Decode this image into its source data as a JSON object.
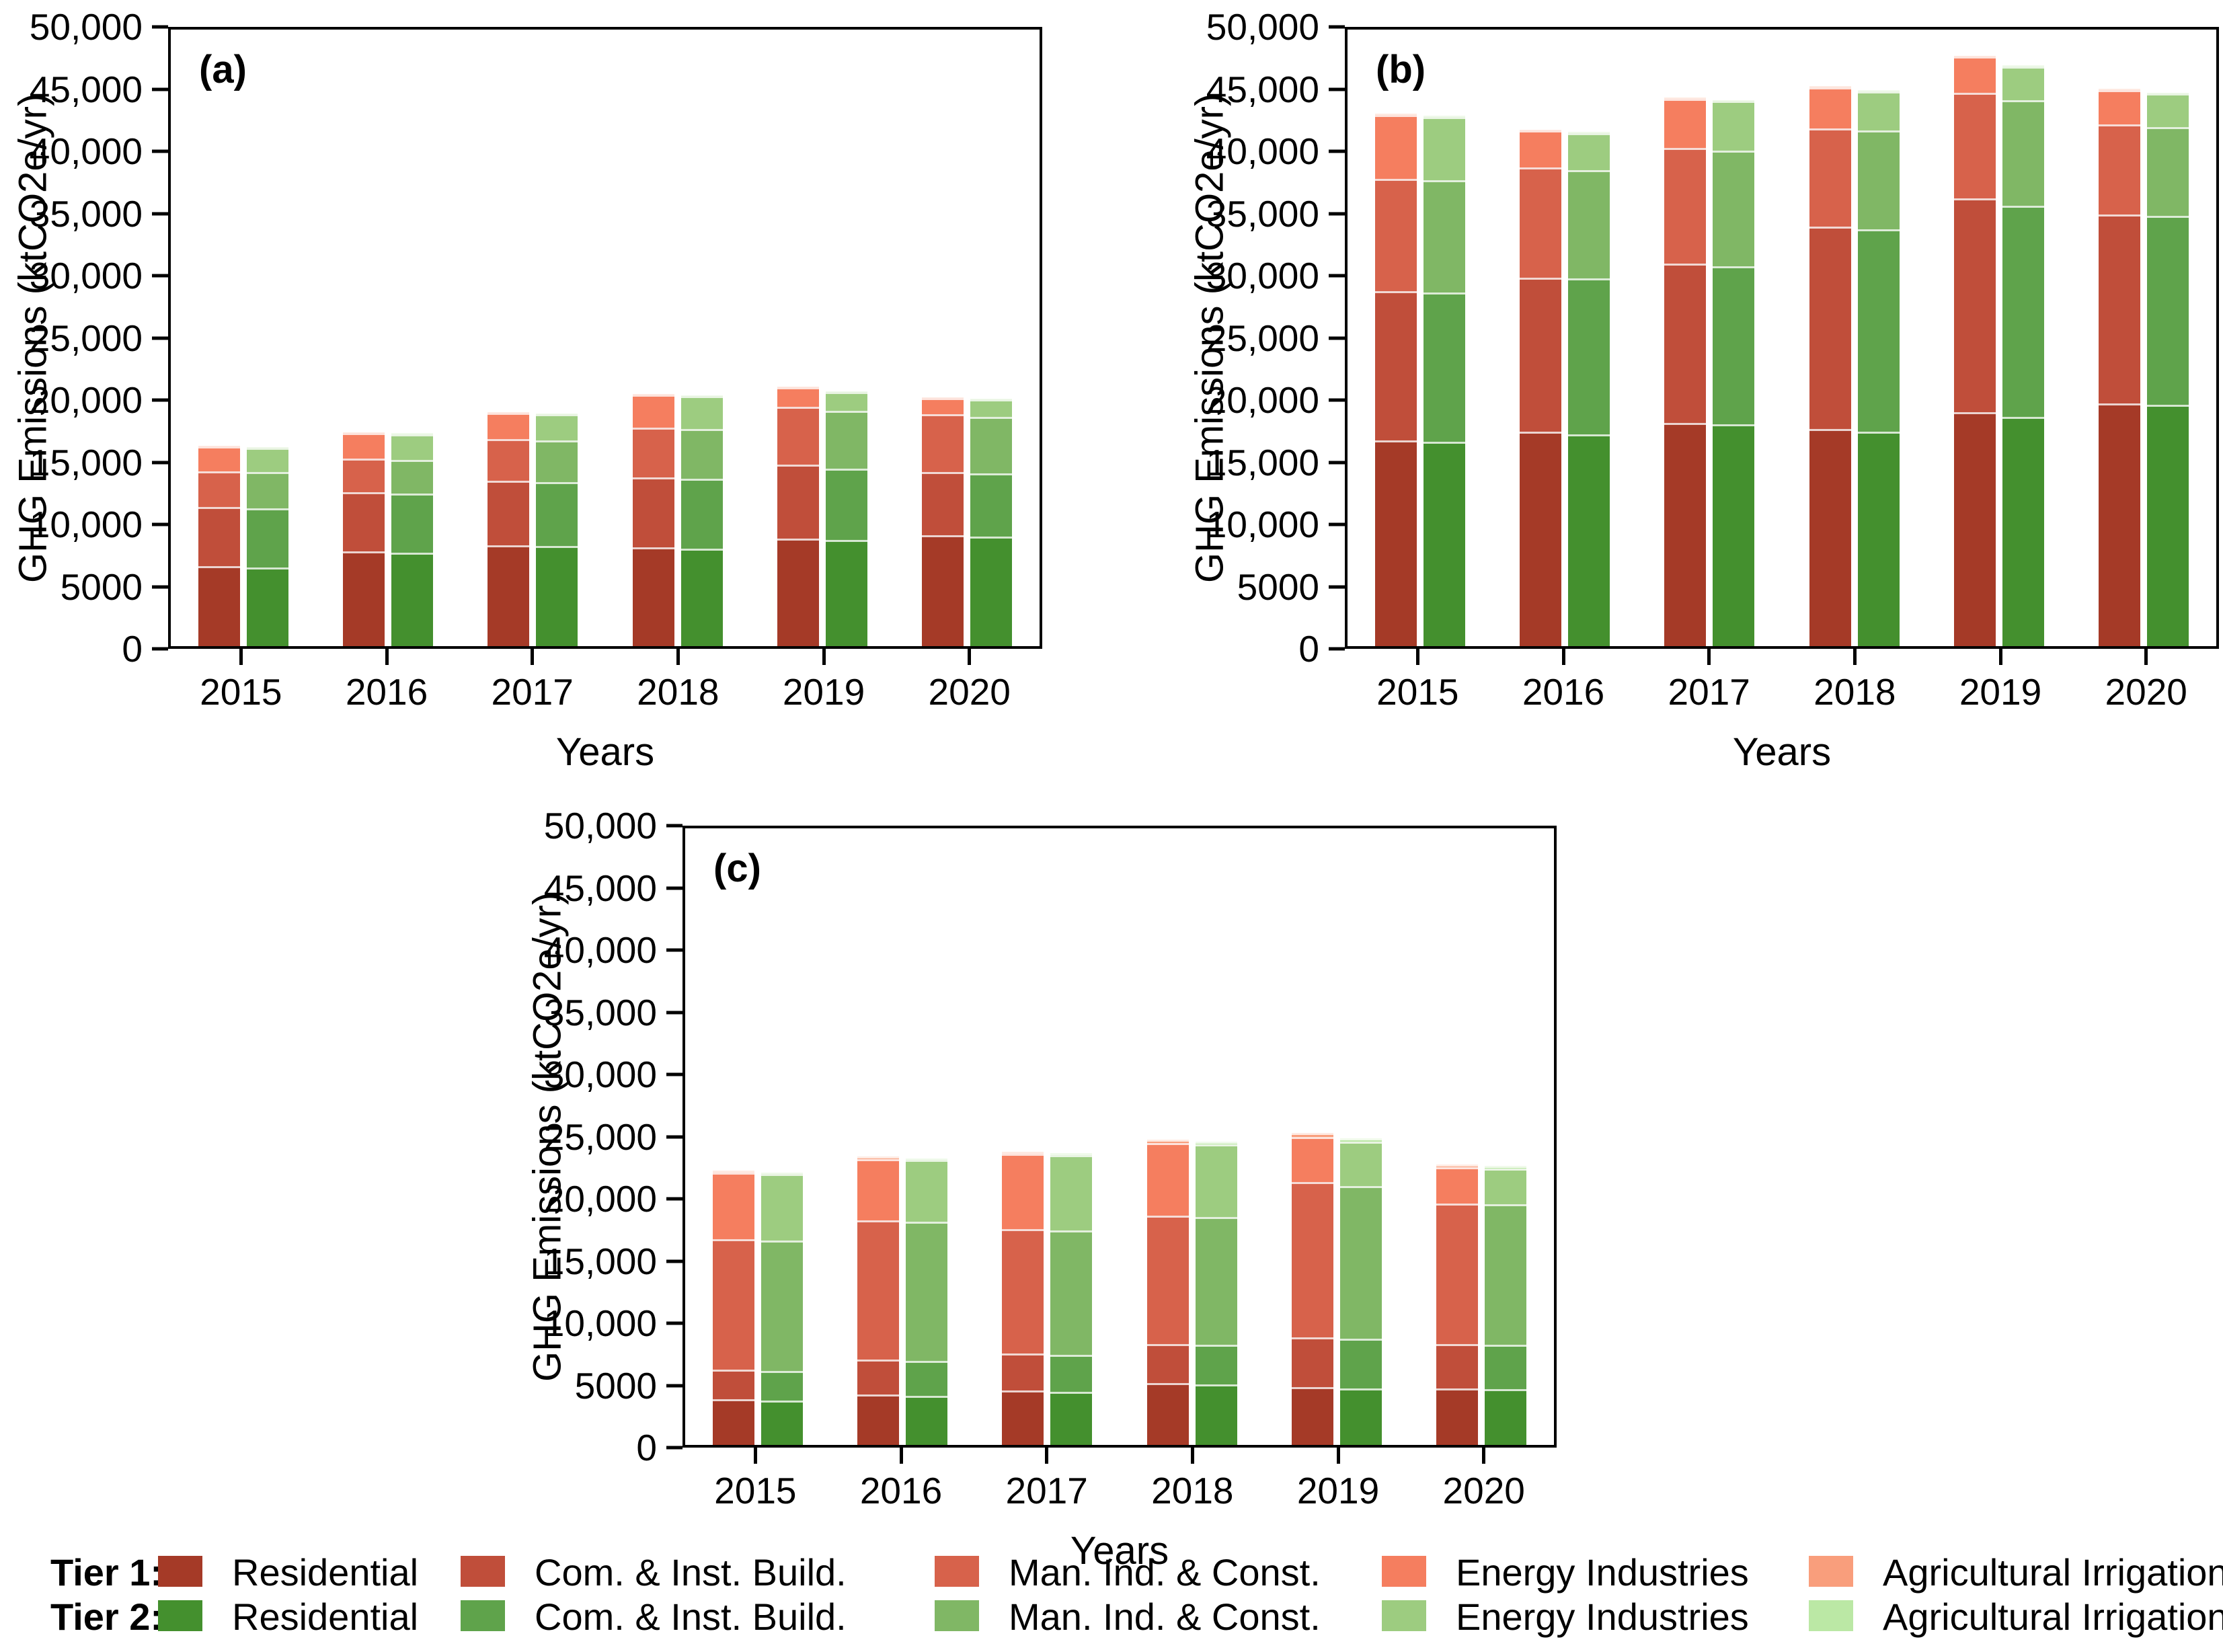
{
  "figure_title": "",
  "axes": {
    "ymax": 50000,
    "ytick_step": 5000,
    "ytick_labels": [
      "0",
      "5000",
      "10,000",
      "15,000",
      "20,000",
      "25,000",
      "30,000",
      "35,000",
      "40,000",
      "45,000",
      "50,000"
    ]
  },
  "colors": {
    "tier1": [
      "#A53A27",
      "#C04E3A",
      "#D7624B",
      "#F57E5F",
      "#F99E7C"
    ],
    "tier2": [
      "#44902E",
      "#5FA34B",
      "#80B765",
      "#9DCC80",
      "#BBE8A5"
    ]
  },
  "stack_order": [
    "Residential",
    "Com. & Inst. Build.",
    "Man. Ind. & Const.",
    "Energy Industries",
    "Agricultural Irrigation"
  ],
  "chart_data": [
    {
      "type": "bar-stacked-paired",
      "label": "(a)",
      "xlabel": "Years",
      "ylabel": "GHG Emissions (ktCO2e/yr)",
      "ylim": [
        0,
        50000
      ],
      "categories": [
        "2015",
        "2016",
        "2017",
        "2018",
        "2019",
        "2020"
      ],
      "series": [
        {
          "name": "Tier 1",
          "stack_labels": [
            "Residential",
            "Com. & Inst. Build.",
            "Man. Ind. & Const.",
            "Energy Industries",
            "Agricultural Irrigation"
          ],
          "values": [
            [
              6500,
              4800,
              2900,
              2000,
              60
            ],
            [
              7700,
              4800,
              2700,
              2100,
              60
            ],
            [
              8200,
              5200,
              3400,
              2100,
              60
            ],
            [
              8000,
              5700,
              4000,
              2700,
              60
            ],
            [
              8700,
              6000,
              4700,
              1600,
              60
            ],
            [
              9000,
              5100,
              4700,
              1300,
              60
            ]
          ]
        },
        {
          "name": "Tier 2",
          "stack_labels": [
            "Residential",
            "Com. & Inst. Build.",
            "Man. Ind. & Const.",
            "Energy Industries",
            "Agricultural Irrigation"
          ],
          "values": [
            [
              6400,
              4800,
              2900,
              2000,
              60
            ],
            [
              7600,
              4800,
              2700,
              2100,
              60
            ],
            [
              8100,
              5200,
              3400,
              2100,
              60
            ],
            [
              7900,
              5700,
              4000,
              2700,
              60
            ],
            [
              8600,
              5800,
              4700,
              1500,
              60
            ],
            [
              8900,
              5100,
              4600,
              1400,
              60
            ]
          ]
        }
      ]
    },
    {
      "type": "bar-stacked-paired",
      "label": "(b)",
      "xlabel": "Years",
      "ylabel": "GHG Emissions (ktCO2e/yr)",
      "ylim": [
        0,
        50000
      ],
      "categories": [
        "2015",
        "2016",
        "2017",
        "2018",
        "2019",
        "2020"
      ],
      "series": [
        {
          "name": "Tier 1",
          "stack_labels": [
            "Residential",
            "Com. & Inst. Build.",
            "Man. Ind. & Const.",
            "Energy Industries",
            "Agricultural Irrigation"
          ],
          "values": [
            [
              16700,
              12100,
              9100,
              5200,
              100
            ],
            [
              17400,
              12500,
              8900,
              3000,
              100
            ],
            [
              18100,
              12900,
              9400,
              4000,
              100
            ],
            [
              17600,
              16400,
              8000,
              3300,
              100
            ],
            [
              19000,
              17300,
              8600,
              2900,
              100
            ],
            [
              19700,
              15300,
              7300,
              2800,
              100
            ]
          ]
        },
        {
          "name": "Tier 2",
          "stack_labels": [
            "Residential",
            "Com. & Inst. Build.",
            "Man. Ind. & Const.",
            "Energy Industries",
            "Agricultural Irrigation"
          ],
          "values": [
            [
              16600,
              12100,
              9100,
              5100,
              100
            ],
            [
              17200,
              12600,
              8800,
              3000,
              100
            ],
            [
              18000,
              12800,
              9400,
              4000,
              100
            ],
            [
              17400,
              16400,
              8000,
              3200,
              100
            ],
            [
              18600,
              17100,
              8600,
              2700,
              100
            ],
            [
              19600,
              15300,
              7200,
              2700,
              100
            ]
          ]
        }
      ]
    },
    {
      "type": "bar-stacked-paired",
      "label": "(c)",
      "xlabel": "Years",
      "ylabel": "GHG Emissions (ktCO2e/yr)",
      "ylim": [
        0,
        50000
      ],
      "categories": [
        "2015",
        "2016",
        "2017",
        "2018",
        "2019",
        "2020"
      ],
      "series": [
        {
          "name": "Tier 1",
          "stack_labels": [
            "Residential",
            "Com. & Inst. Build.",
            "Man. Ind. & Const.",
            "Energy Industries",
            "Agricultural Irrigation"
          ],
          "values": [
            [
              3700,
              2400,
              10600,
              5400,
              150
            ],
            [
              4100,
              2800,
              11300,
              5000,
              200
            ],
            [
              4400,
              3000,
              10100,
              6100,
              200
            ],
            [
              5000,
              3200,
              10400,
              5900,
              250
            ],
            [
              4700,
              4000,
              12600,
              3700,
              300
            ],
            [
              4600,
              3600,
              11400,
              2900,
              250
            ]
          ]
        },
        {
          "name": "Tier 2",
          "stack_labels": [
            "Residential",
            "Com. & Inst. Build.",
            "Man. Ind. & Const.",
            "Energy Industries",
            "Agricultural Irrigation"
          ],
          "values": [
            [
              3600,
              2400,
              10600,
              5400,
              100
            ],
            [
              4000,
              2800,
              11300,
              5000,
              150
            ],
            [
              4300,
              3000,
              10100,
              6100,
              150
            ],
            [
              4900,
              3200,
              10400,
              5900,
              200
            ],
            [
              4600,
              4000,
              12400,
              3600,
              250
            ],
            [
              4500,
              3600,
              11400,
              2900,
              250
            ]
          ]
        }
      ]
    }
  ],
  "legend": {
    "tiers": [
      {
        "label": "Tier 1:",
        "items": [
          {
            "label": "Residential",
            "color": "#A53A27"
          },
          {
            "label": "Com. & Inst. Build.",
            "color": "#C04E3A"
          },
          {
            "label": "Man. Ind. & Const.",
            "color": "#D7624B"
          },
          {
            "label": "Energy Industries",
            "color": "#F57E5F"
          },
          {
            "label": "Agricultural Irrigation",
            "color": "#F99E7C"
          }
        ]
      },
      {
        "label": "Tier 2:",
        "items": [
          {
            "label": "Residential",
            "color": "#44902E"
          },
          {
            "label": "Com. & Inst. Build.",
            "color": "#5FA34B"
          },
          {
            "label": "Man. Ind. & Const.",
            "color": "#80B765"
          },
          {
            "label": "Energy Industries",
            "color": "#9DCC80"
          },
          {
            "label": "Agricultural Irrigation",
            "color": "#BBE8A5"
          }
        ]
      }
    ]
  }
}
